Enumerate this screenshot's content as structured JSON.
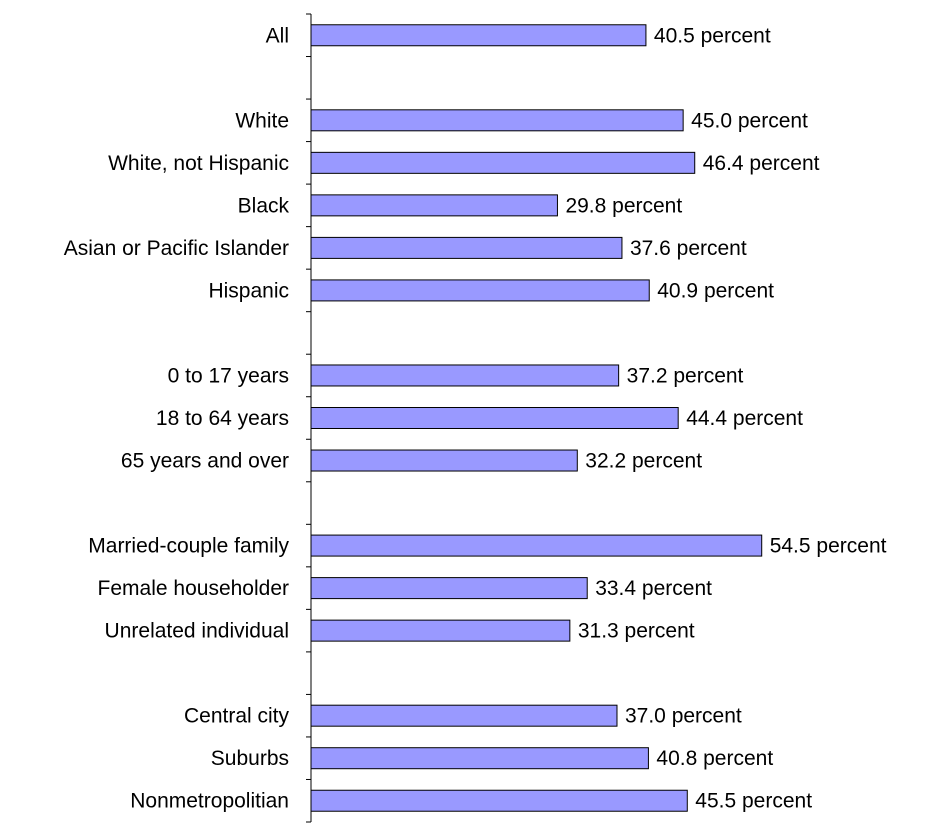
{
  "chart_data": {
    "type": "bar",
    "orientation": "horizontal",
    "categories": [
      "All",
      "",
      "White",
      "White, not Hispanic",
      "Black",
      "Asian or Pacific Islander",
      "Hispanic",
      "",
      "0 to 17 years",
      "18 to 64 years",
      "65 years and over",
      "",
      "Married-couple family",
      "Female householder",
      "Unrelated individual",
      "",
      "Central city",
      "Suburbs",
      "Nonmetropolitian"
    ],
    "values": [
      40.5,
      null,
      45.0,
      46.4,
      29.8,
      37.6,
      40.9,
      null,
      37.2,
      44.4,
      32.2,
      null,
      54.5,
      33.4,
      31.3,
      null,
      37.0,
      40.8,
      45.5
    ],
    "data_labels": [
      "40.5 percent",
      "",
      "45.0 percent",
      "46.4 percent",
      "29.8 percent",
      "37.6 percent",
      "40.9 percent",
      "",
      "37.2 percent",
      "44.4 percent",
      "32.2 percent",
      "",
      "54.5 percent",
      "33.4 percent",
      "31.3 percent",
      "",
      "37.0 percent",
      "40.8 percent",
      "45.5 percent"
    ],
    "title": "",
    "xlabel": "",
    "ylabel": "",
    "xlim": [
      0,
      60
    ],
    "grid": false,
    "legend": "none",
    "colors": {
      "bar_fill": "#9999ff",
      "bar_stroke": "#000000",
      "axis": "#000000",
      "text": "#000000"
    }
  }
}
